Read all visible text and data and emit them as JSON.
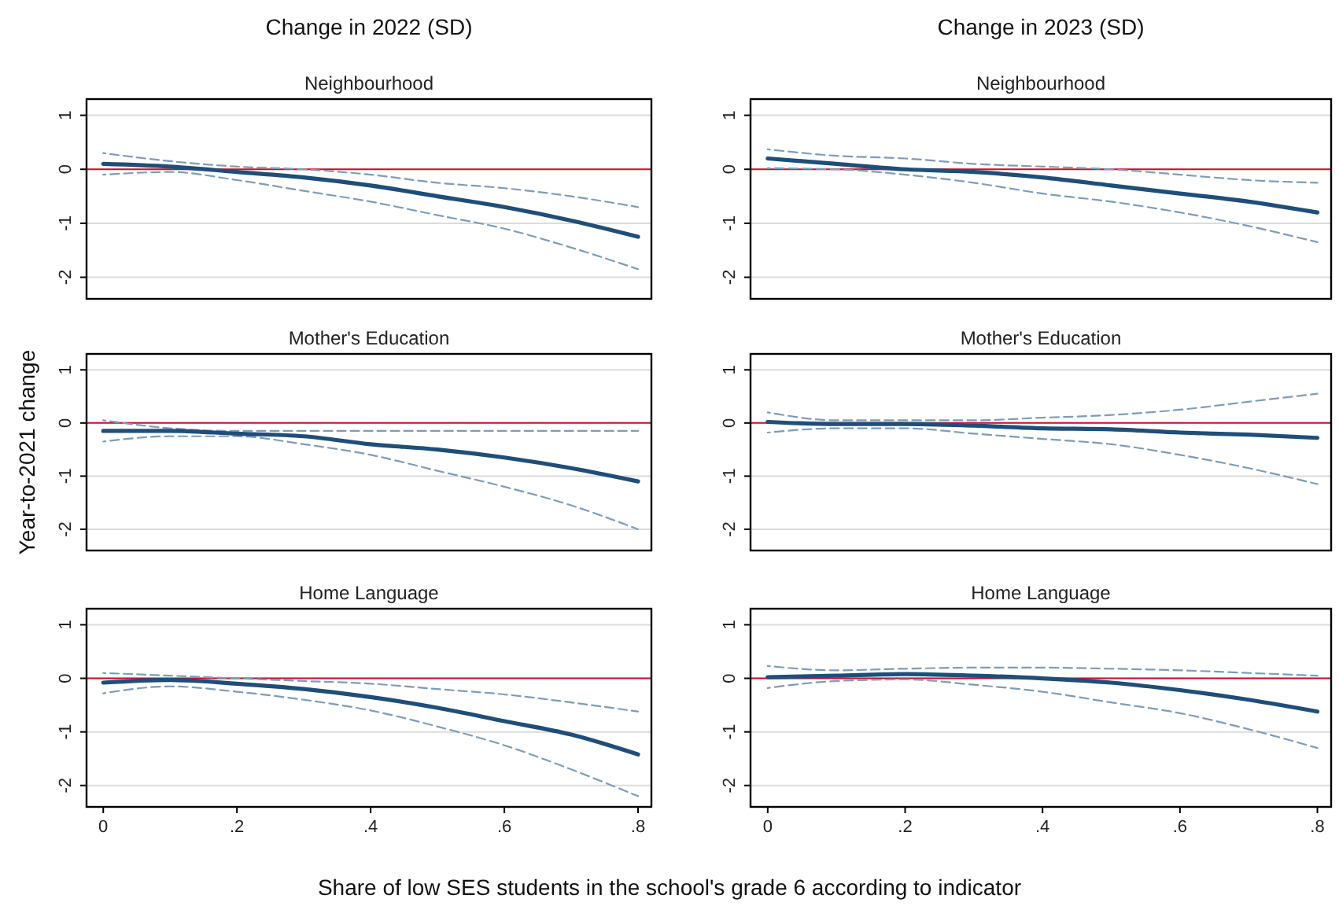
{
  "chart_data": [
    {
      "type": "line",
      "title": "Change in 2022 (SD)",
      "subtitle": "Neighbourhood",
      "x": [
        0,
        0.1,
        0.2,
        0.3,
        0.4,
        0.5,
        0.6,
        0.7,
        0.8
      ],
      "xlim": [
        -0.025,
        0.82
      ],
      "ylim": [
        -2.4,
        1.3
      ],
      "yticks": [
        -2,
        -1,
        0,
        1
      ],
      "grid": "y",
      "tick_labels": "y",
      "ref_lines": [
        {
          "axis": "y",
          "value": 0,
          "color": "#c8102e"
        }
      ],
      "series": [
        {
          "type": "line",
          "color": "#7f9cb8",
          "line_style": "dashed",
          "values": [
            0.3,
            0.15,
            0.05,
            0,
            -0.1,
            -0.25,
            -0.35,
            -0.5,
            -0.7
          ]
        },
        {
          "type": "line",
          "color": "#7f9cb8",
          "line_style": "dashed",
          "values": [
            -0.1,
            -0.05,
            -0.2,
            -0.4,
            -0.6,
            -0.85,
            -1.1,
            -1.45,
            -1.85
          ]
        },
        {
          "type": "line",
          "color": "#1f4e79",
          "line_style": "solid",
          "values": [
            0.1,
            0.05,
            -0.05,
            -0.15,
            -0.3,
            -0.5,
            -0.7,
            -0.95,
            -1.25
          ]
        }
      ]
    },
    {
      "type": "line",
      "title": "Change in 2023 (SD)",
      "subtitle": "Neighbourhood",
      "x": [
        0,
        0.1,
        0.2,
        0.3,
        0.4,
        0.5,
        0.6,
        0.7,
        0.8
      ],
      "xlim": [
        -0.025,
        0.82
      ],
      "ylim": [
        -2.4,
        1.3
      ],
      "yticks": [
        -2,
        -1,
        0,
        1
      ],
      "grid": "y",
      "tick_labels": "y",
      "ref_lines": [
        {
          "axis": "y",
          "value": 0,
          "color": "#c8102e"
        }
      ],
      "series": [
        {
          "type": "line",
          "color": "#7f9cb8",
          "line_style": "dashed",
          "values": [
            0.37,
            0.25,
            0.2,
            0.1,
            0.05,
            0,
            -0.1,
            -0.2,
            -0.25
          ]
        },
        {
          "type": "line",
          "color": "#7f9cb8",
          "line_style": "dashed",
          "values": [
            0.02,
            0,
            -0.1,
            -0.25,
            -0.45,
            -0.6,
            -0.8,
            -1.05,
            -1.35
          ]
        },
        {
          "type": "line",
          "color": "#1f4e79",
          "line_style": "solid",
          "values": [
            0.2,
            0.1,
            0,
            -0.05,
            -0.15,
            -0.3,
            -0.45,
            -0.6,
            -0.8
          ]
        }
      ]
    },
    {
      "type": "line",
      "subtitle": "Mother's Education",
      "ylabel": "Year-to-2021 change",
      "x": [
        0,
        0.1,
        0.2,
        0.3,
        0.4,
        0.5,
        0.6,
        0.7,
        0.8
      ],
      "xlim": [
        -0.025,
        0.82
      ],
      "ylim": [
        -2.4,
        1.3
      ],
      "yticks": [
        -2,
        -1,
        0,
        1
      ],
      "grid": "y",
      "tick_labels": "y",
      "ref_lines": [
        {
          "axis": "y",
          "value": 0,
          "color": "#c8102e"
        }
      ],
      "series": [
        {
          "type": "line",
          "color": "#7f9cb8",
          "line_style": "dashed",
          "values": [
            0.05,
            -0.1,
            -0.15,
            -0.15,
            -0.15,
            -0.15,
            -0.15,
            -0.15,
            -0.15
          ]
        },
        {
          "type": "line",
          "color": "#7f9cb8",
          "line_style": "dashed",
          "values": [
            -0.35,
            -0.25,
            -0.25,
            -0.4,
            -0.6,
            -0.9,
            -1.2,
            -1.55,
            -2
          ]
        },
        {
          "type": "line",
          "color": "#1f4e79",
          "line_style": "solid",
          "values": [
            -0.15,
            -0.15,
            -0.2,
            -0.25,
            -0.4,
            -0.5,
            -0.65,
            -0.85,
            -1.1
          ]
        }
      ]
    },
    {
      "type": "line",
      "subtitle": "Mother's Education",
      "x": [
        0,
        0.1,
        0.2,
        0.3,
        0.4,
        0.5,
        0.6,
        0.7,
        0.8
      ],
      "xlim": [
        -0.025,
        0.82
      ],
      "ylim": [
        -2.4,
        1.3
      ],
      "yticks": [
        -2,
        -1,
        0,
        1
      ],
      "grid": "y",
      "tick_labels": "y",
      "ref_lines": [
        {
          "axis": "y",
          "value": 0,
          "color": "#c8102e"
        }
      ],
      "series": [
        {
          "type": "line",
          "color": "#7f9cb8",
          "line_style": "dashed",
          "values": [
            0.2,
            0.05,
            0.05,
            0.05,
            0.1,
            0.15,
            0.25,
            0.4,
            0.55
          ]
        },
        {
          "type": "line",
          "color": "#7f9cb8",
          "line_style": "dashed",
          "values": [
            -0.18,
            -0.1,
            -0.1,
            -0.2,
            -0.3,
            -0.4,
            -0.6,
            -0.85,
            -1.15
          ]
        },
        {
          "type": "line",
          "color": "#1f4e79",
          "line_style": "solid",
          "values": [
            0.02,
            -0.02,
            -0.02,
            -0.05,
            -0.1,
            -0.12,
            -0.18,
            -0.22,
            -0.28
          ]
        }
      ]
    },
    {
      "type": "line",
      "subtitle": "Home Language",
      "xlabel": "Share of low SES students in the school's grade 6 according to indicator",
      "x": [
        0,
        0.1,
        0.2,
        0.3,
        0.4,
        0.5,
        0.6,
        0.7,
        0.8
      ],
      "xlim": [
        -0.025,
        0.82
      ],
      "xticks": [
        {
          "value": 0,
          "label": "0"
        },
        {
          "value": 0.2,
          "label": ".2"
        },
        {
          "value": 0.4,
          "label": ".4"
        },
        {
          "value": 0.6,
          "label": ".6"
        },
        {
          "value": 0.8,
          "label": ".8"
        }
      ],
      "ylim": [
        -2.4,
        1.3
      ],
      "yticks": [
        -2,
        -1,
        0,
        1
      ],
      "grid": "y",
      "ref_lines": [
        {
          "axis": "y",
          "value": 0,
          "color": "#c8102e"
        }
      ],
      "series": [
        {
          "type": "line",
          "color": "#7f9cb8",
          "line_style": "dashed",
          "values": [
            0.1,
            0.05,
            0,
            -0.05,
            -0.1,
            -0.2,
            -0.3,
            -0.45,
            -0.62
          ]
        },
        {
          "type": "line",
          "color": "#7f9cb8",
          "line_style": "dashed",
          "values": [
            -0.28,
            -0.15,
            -0.25,
            -0.4,
            -0.6,
            -0.9,
            -1.25,
            -1.7,
            -2.2
          ]
        },
        {
          "type": "line",
          "color": "#1f4e79",
          "line_style": "solid",
          "values": [
            -0.08,
            -0.03,
            -0.1,
            -0.2,
            -0.35,
            -0.55,
            -0.8,
            -1.05,
            -1.42
          ]
        }
      ]
    },
    {
      "type": "line",
      "subtitle": "Home Language",
      "x": [
        0,
        0.1,
        0.2,
        0.3,
        0.4,
        0.5,
        0.6,
        0.7,
        0.8
      ],
      "xlim": [
        -0.025,
        0.82
      ],
      "xticks": [
        {
          "value": 0,
          "label": "0"
        },
        {
          "value": 0.2,
          "label": ".2"
        },
        {
          "value": 0.4,
          "label": ".4"
        },
        {
          "value": 0.6,
          "label": ".6"
        },
        {
          "value": 0.8,
          "label": ".8"
        }
      ],
      "ylim": [
        -2.4,
        1.3
      ],
      "yticks": [
        -2,
        -1,
        0,
        1
      ],
      "grid": "y",
      "ref_lines": [
        {
          "axis": "y",
          "value": 0,
          "color": "#c8102e"
        }
      ],
      "series": [
        {
          "type": "line",
          "color": "#7f9cb8",
          "line_style": "dashed",
          "values": [
            0.23,
            0.15,
            0.18,
            0.2,
            0.2,
            0.18,
            0.15,
            0.1,
            0.05
          ]
        },
        {
          "type": "line",
          "color": "#7f9cb8",
          "line_style": "dashed",
          "values": [
            -0.18,
            -0.05,
            -0.02,
            -0.12,
            -0.25,
            -0.45,
            -0.65,
            -0.95,
            -1.3
          ]
        },
        {
          "type": "line",
          "color": "#1f4e79",
          "line_style": "solid",
          "values": [
            0.02,
            0.05,
            0.08,
            0.05,
            0,
            -0.08,
            -0.22,
            -0.4,
            -0.62
          ]
        }
      ]
    }
  ]
}
